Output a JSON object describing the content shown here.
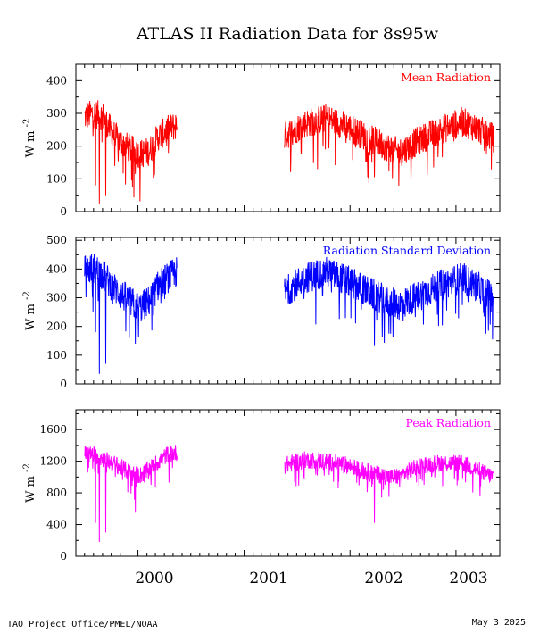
{
  "title": "ATLAS II Radiation Data for 8s95w",
  "footer": {
    "credit": "TAO Project Office/PMEL/NOAA",
    "date": "May  3 2025"
  },
  "colors": {
    "mean": "#ff0000",
    "stddev": "#0000ff",
    "peak": "#ff00ff"
  },
  "chart_data": [
    {
      "type": "line",
      "legend": "Mean Radiation",
      "ylabel": "W m",
      "ylabel_sup": "-2",
      "ylim": [
        0,
        450
      ],
      "yticks": [
        0,
        100,
        200,
        300,
        400
      ],
      "xlabels": [
        "2000",
        "2001",
        "2002",
        "2003"
      ],
      "xrange": [
        "1999-06-01",
        "2003-06-01"
      ],
      "color": "#ff0000",
      "segments": [
        {
          "start": "1999-07-01",
          "end": "2000-05-15",
          "anchors": [
            [
              0,
              290
            ],
            [
              0.1,
              300
            ],
            [
              0.2,
              290
            ],
            [
              0.3,
              240
            ],
            [
              0.4,
              210
            ],
            [
              0.5,
              190
            ],
            [
              0.6,
              175
            ],
            [
              0.7,
              185
            ],
            [
              0.8,
              230
            ],
            [
              0.9,
              250
            ],
            [
              1,
              265
            ]
          ],
          "spread": 45,
          "dips": [
            [
              0.16,
              25
            ],
            [
              0.23,
              50
            ],
            [
              0.12,
              80
            ],
            [
              0.55,
              115
            ]
          ]
        },
        {
          "start": "2001-05-20",
          "end": "2003-05-10",
          "anchors": [
            [
              0,
              230
            ],
            [
              0.1,
              270
            ],
            [
              0.2,
              285
            ],
            [
              0.3,
              260
            ],
            [
              0.4,
              225
            ],
            [
              0.5,
              195
            ],
            [
              0.55,
              180
            ],
            [
              0.65,
              220
            ],
            [
              0.75,
              250
            ],
            [
              0.85,
              275
            ],
            [
              0.92,
              255
            ],
            [
              1,
              225
            ]
          ],
          "spread": 45,
          "dips": [
            [
              0.43,
              105
            ],
            [
              0.5,
              125
            ]
          ]
        }
      ]
    },
    {
      "type": "line",
      "legend": "Radiation Standard Deviation",
      "ylabel": "W m",
      "ylabel_sup": "-2",
      "ylim": [
        0,
        510
      ],
      "yticks": [
        0,
        100,
        200,
        300,
        400,
        500
      ],
      "xlabels": [
        "2000",
        "2001",
        "2002",
        "2003"
      ],
      "xrange": [
        "1999-06-01",
        "2003-06-01"
      ],
      "color": "#0000ff",
      "segments": [
        {
          "start": "1999-07-01",
          "end": "2000-05-15",
          "anchors": [
            [
              0,
              395
            ],
            [
              0.1,
              405
            ],
            [
              0.2,
              380
            ],
            [
              0.3,
              340
            ],
            [
              0.4,
              310
            ],
            [
              0.5,
              285
            ],
            [
              0.6,
              265
            ],
            [
              0.7,
              290
            ],
            [
              0.8,
              345
            ],
            [
              0.9,
              370
            ],
            [
              1,
              390
            ]
          ],
          "spread": 55,
          "dips": [
            [
              0.16,
              35
            ],
            [
              0.23,
              70
            ],
            [
              0.12,
              180
            ],
            [
              0.55,
              140
            ]
          ]
        },
        {
          "start": "2001-05-20",
          "end": "2003-05-10",
          "anchors": [
            [
              0,
              320
            ],
            [
              0.1,
              370
            ],
            [
              0.2,
              390
            ],
            [
              0.3,
              360
            ],
            [
              0.4,
              320
            ],
            [
              0.5,
              285
            ],
            [
              0.55,
              275
            ],
            [
              0.65,
              310
            ],
            [
              0.75,
              345
            ],
            [
              0.85,
              370
            ],
            [
              0.92,
              340
            ],
            [
              1,
              300
            ]
          ],
          "spread": 55,
          "dips": [
            [
              0.43,
              135
            ],
            [
              0.5,
              175
            ]
          ]
        }
      ]
    },
    {
      "type": "line",
      "legend": "Peak Radiation",
      "ylabel": "W m",
      "ylabel_sup": "-2",
      "ylim": [
        0,
        1850
      ],
      "yticks": [
        0,
        400,
        800,
        1200,
        1600
      ],
      "xlabels": [
        "2000",
        "2001",
        "2002",
        "2003"
      ],
      "xrange": [
        "1999-06-01",
        "2003-06-01"
      ],
      "color": "#ff00ff",
      "segments": [
        {
          "start": "1999-07-01",
          "end": "2000-05-15",
          "anchors": [
            [
              0,
              1300
            ],
            [
              0.1,
              1280
            ],
            [
              0.2,
              1230
            ],
            [
              0.3,
              1180
            ],
            [
              0.4,
              1120
            ],
            [
              0.5,
              1050
            ],
            [
              0.6,
              1020
            ],
            [
              0.7,
              1100
            ],
            [
              0.8,
              1200
            ],
            [
              0.9,
              1290
            ],
            [
              1,
              1310
            ]
          ],
          "spread": 110,
          "dips": [
            [
              0.16,
              180
            ],
            [
              0.23,
              300
            ],
            [
              0.12,
              420
            ],
            [
              0.55,
              550
            ]
          ]
        },
        {
          "start": "2001-05-20",
          "end": "2003-05-10",
          "anchors": [
            [
              0,
              1150
            ],
            [
              0.1,
              1220
            ],
            [
              0.2,
              1200
            ],
            [
              0.3,
              1150
            ],
            [
              0.4,
              1060
            ],
            [
              0.5,
              1000
            ],
            [
              0.55,
              1010
            ],
            [
              0.65,
              1150
            ],
            [
              0.75,
              1180
            ],
            [
              0.85,
              1170
            ],
            [
              0.92,
              1100
            ],
            [
              1,
              1000
            ]
          ],
          "spread": 110,
          "dips": [
            [
              0.43,
              420
            ],
            [
              0.5,
              750
            ]
          ]
        }
      ]
    }
  ]
}
